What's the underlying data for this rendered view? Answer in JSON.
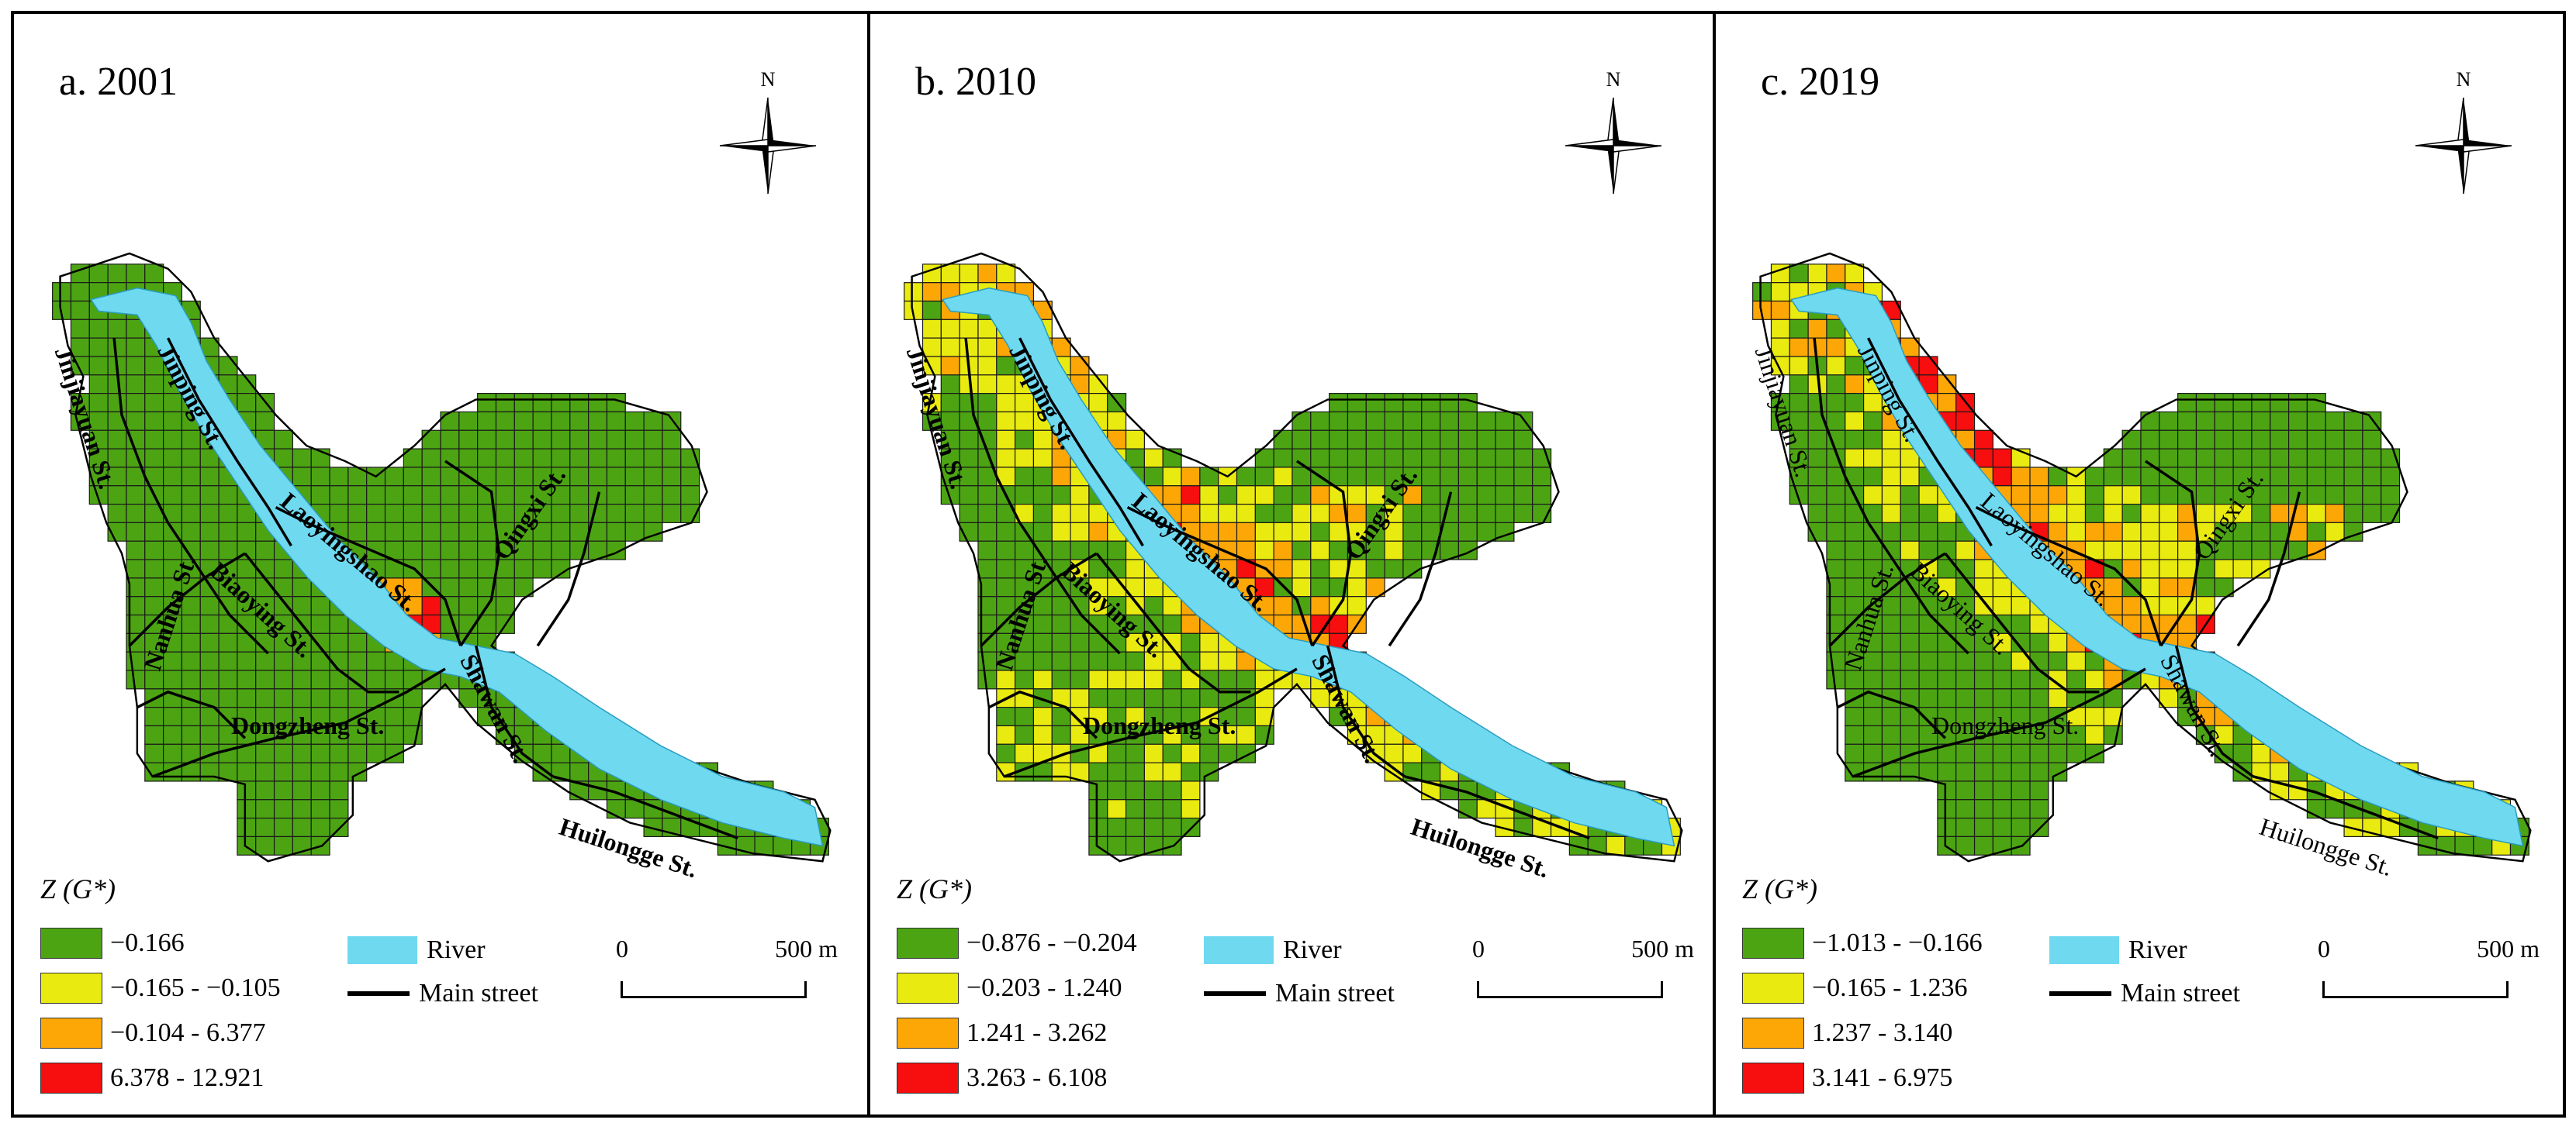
{
  "panels": [
    {
      "title": "a. 2001",
      "north_label": "N",
      "legend_title": "Z (G*)",
      "classes": [
        {
          "label": "−0.166",
          "color": "#4ca413"
        },
        {
          "label": "−0.165 - −0.105",
          "color": "#e9ea0f"
        },
        {
          "label": "−0.104 - 6.377",
          "color": "#fca706"
        },
        {
          "label": "6.378 - 12.921",
          "color": "#f70e0e"
        }
      ],
      "river_label": "River",
      "street_label": "Main street",
      "scale_start": "0",
      "scale_end": "500 m",
      "streets": [
        "Jinjiayuan St.",
        "Jinping St.",
        "Laoyingshao St.",
        "Qingxi St.",
        "Nanhua St.",
        "Biaoying St.",
        "Dongzheng St.",
        "Shawan St.",
        "Huilongge St."
      ]
    },
    {
      "title": "b. 2010",
      "north_label": "N",
      "legend_title": "Z (G*)",
      "classes": [
        {
          "label": "−0.876 - −0.204",
          "color": "#4ca413"
        },
        {
          "label": "−0.203 - 1.240",
          "color": "#e9ea0f"
        },
        {
          "label": "1.241 - 3.262",
          "color": "#fca706"
        },
        {
          "label": "3.263 - 6.108",
          "color": "#f70e0e"
        }
      ],
      "river_label": "River",
      "street_label": "Main street",
      "scale_start": "0",
      "scale_end": "500 m",
      "streets": [
        "Jinjiayuan St.",
        "Jinping St.",
        "Laoyingshao St.",
        "Qingxi St.",
        "Nanhua St.",
        "Biaoying St.",
        "Dongzheng St.",
        "Shawan St.",
        "Huilongge St."
      ]
    },
    {
      "title": "c. 2019",
      "north_label": "N",
      "legend_title": "Z (G*)",
      "classes": [
        {
          "label": "−1.013 - −0.166",
          "color": "#4ca413"
        },
        {
          "label": "−0.165 - 1.236",
          "color": "#e9ea0f"
        },
        {
          "label": "1.237 - 3.140",
          "color": "#fca706"
        },
        {
          "label": "3.141 - 6.975",
          "color": "#f70e0e"
        }
      ],
      "river_label": "River",
      "street_label": "Main street",
      "scale_start": "0",
      "scale_end": "500 m",
      "streets": [
        "Jinjiayuan St.",
        "Jinping St.",
        "Laoyingshao St.",
        "Qingxi St.",
        "Nanhua St.",
        "Biaoying St.",
        "Dongzheng St.",
        "Shawan St.",
        "Huilongge St."
      ]
    }
  ],
  "colors": {
    "green": "#4ca413",
    "yellow": "#e9ea0f",
    "orange": "#fca706",
    "red": "#f70e0e",
    "river": "#6fd9f0",
    "street": "#000000"
  }
}
